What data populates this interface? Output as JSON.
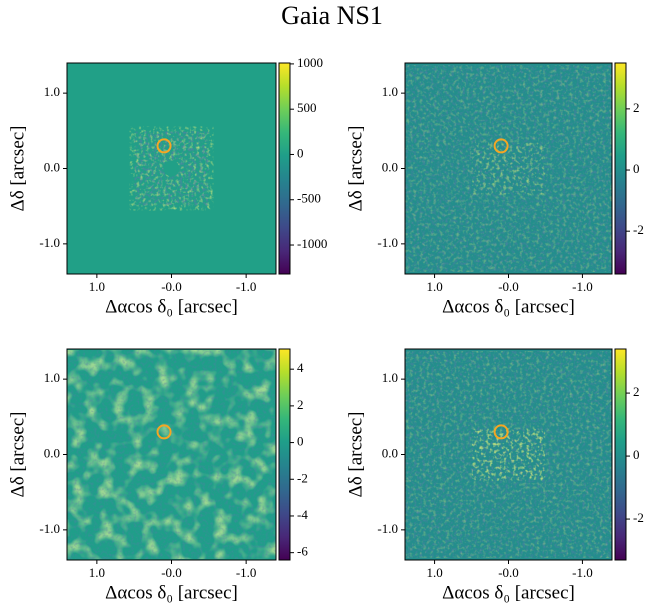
{
  "title": "Gaia NS1",
  "chart_data": [
    {
      "type": "image",
      "xlabel": "Δαcos δ₀ [arcsec]",
      "ylabel": "Δδ [arcsec]",
      "xlim": [
        1.4,
        -1.4
      ],
      "ylim": [
        -1.4,
        1.4
      ],
      "xticks": [
        {
          "value": 1,
          "label": "1.0"
        },
        {
          "value": 0,
          "label": "-0.0"
        },
        {
          "value": -1,
          "label": "-1.0"
        }
      ],
      "yticks": [
        {
          "value": 1,
          "label": "1.0"
        },
        {
          "value": 0,
          "label": "0.0"
        },
        {
          "value": -1,
          "label": "-1.0"
        }
      ],
      "clim": [
        -1320,
        1010
      ],
      "cticks": [
        1000,
        500,
        0,
        -500,
        -1000
      ],
      "markers": [
        {
          "x": 0.1,
          "y": 0.3
        }
      ],
      "marker_color": "#f5a623"
    },
    {
      "type": "image",
      "xlabel": "Δαcos δ₀ [arcsec]",
      "ylabel": "Δδ [arcsec]",
      "xlim": [
        1.4,
        -1.4
      ],
      "ylim": [
        -1.4,
        1.4
      ],
      "xticks": [
        {
          "value": 1,
          "label": "1.0"
        },
        {
          "value": 0,
          "label": "-0.0"
        },
        {
          "value": -1,
          "label": "-1.0"
        }
      ],
      "yticks": [
        {
          "value": 1,
          "label": "1.0"
        },
        {
          "value": 0,
          "label": "0.0"
        },
        {
          "value": -1,
          "label": "-1.0"
        }
      ],
      "clim": [
        -3.4,
        3.5
      ],
      "cticks": [
        2,
        0,
        -2
      ],
      "markers": [
        {
          "x": 0.1,
          "y": 0.3
        }
      ],
      "marker_color": "#f5a623"
    },
    {
      "type": "image",
      "xlabel": "Δαcos δ₀ [arcsec]",
      "ylabel": "Δδ [arcsec]",
      "xlim": [
        1.4,
        -1.4
      ],
      "ylim": [
        -1.4,
        1.4
      ],
      "xticks": [
        {
          "value": 1,
          "label": "1.0"
        },
        {
          "value": 0,
          "label": "-0.0"
        },
        {
          "value": -1,
          "label": "-1.0"
        }
      ],
      "yticks": [
        {
          "value": 1,
          "label": "1.0"
        },
        {
          "value": 0,
          "label": "0.0"
        },
        {
          "value": -1,
          "label": "-1.0"
        }
      ],
      "clim": [
        -6.4,
        5.1
      ],
      "cticks": [
        4,
        2,
        0,
        -2,
        -4,
        -6
      ],
      "markers": [
        {
          "x": 0.1,
          "y": 0.3
        }
      ],
      "marker_color": "#f5a623"
    },
    {
      "type": "image",
      "xlabel": "Δαcos δ₀ [arcsec]",
      "ylabel": "Δδ [arcsec]",
      "xlim": [
        1.4,
        -1.4
      ],
      "ylim": [
        -1.4,
        1.4
      ],
      "xticks": [
        {
          "value": 1,
          "label": "1.0"
        },
        {
          "value": 0,
          "label": "-0.0"
        },
        {
          "value": -1,
          "label": "-1.0"
        }
      ],
      "yticks": [
        {
          "value": 1,
          "label": "1.0"
        },
        {
          "value": 0,
          "label": "0.0"
        },
        {
          "value": -1,
          "label": "-1.0"
        }
      ],
      "clim": [
        -3.3,
        3.4
      ],
      "cticks": [
        2,
        0,
        -2
      ],
      "markers": [
        {
          "x": 0.1,
          "y": 0.3
        }
      ],
      "marker_color": "#f5a623"
    }
  ]
}
